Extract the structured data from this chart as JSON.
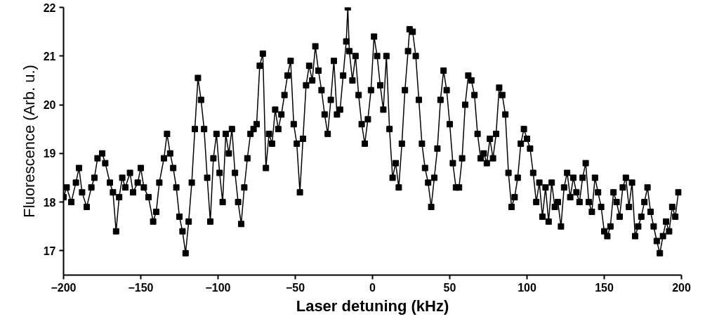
{
  "chart_data": {
    "type": "line",
    "xlabel": "Laser detuning (kHz)",
    "ylabel": "Fluorescence (Arb. u.)",
    "xlim": [
      -200,
      200
    ],
    "ylim": [
      16.5,
      22
    ],
    "xticks": [
      -200,
      -150,
      -100,
      -50,
      0,
      50,
      100,
      150,
      200
    ],
    "yticks": [
      17,
      18,
      19,
      20,
      21,
      22
    ],
    "grid": false,
    "marker": "square",
    "line_style": "solid",
    "x": [
      -200,
      -198,
      -195,
      -192,
      -190,
      -188,
      -185,
      -182,
      -180,
      -178,
      -175,
      -173,
      -170,
      -168,
      -166,
      -164,
      -162,
      -160,
      -157,
      -155,
      -152,
      -150,
      -148,
      -145,
      -142,
      -140,
      -138,
      -135,
      -133,
      -131,
      -129,
      -127,
      -125,
      -123,
      -121,
      -119,
      -117,
      -115,
      -113,
      -111,
      -109,
      -107,
      -105,
      -103,
      -101,
      -99,
      -97,
      -95,
      -93,
      -91,
      -89,
      -87,
      -85,
      -83,
      -81,
      -79,
      -77,
      -75,
      -73,
      -71,
      -69,
      -67,
      -65,
      -63,
      -61,
      -59,
      -57,
      -55,
      -53,
      -51,
      -49,
      -47,
      -45,
      -43,
      -41,
      -39,
      -37,
      -35,
      -33,
      -31,
      -29,
      -27,
      -25,
      -23,
      -21,
      -19,
      -17,
      -16,
      -15,
      -13,
      -11,
      -9,
      -7,
      -5,
      -3,
      -1,
      1,
      3,
      5,
      7,
      9,
      11,
      13,
      15,
      17,
      19,
      21,
      23,
      24,
      26,
      28,
      30,
      32,
      34,
      36,
      38,
      40,
      42,
      44,
      46,
      48,
      50,
      52,
      54,
      56,
      58,
      60,
      62,
      64,
      66,
      68,
      70,
      72,
      74,
      76,
      78,
      80,
      82,
      84,
      86,
      88,
      90,
      92,
      94,
      96,
      98,
      100,
      102,
      104,
      106,
      108,
      110,
      112,
      114,
      116,
      118,
      120,
      122,
      124,
      126,
      128,
      130,
      132,
      134,
      136,
      138,
      140,
      142,
      144,
      146,
      148,
      150,
      152,
      154,
      156,
      158,
      160,
      162,
      164,
      166,
      168,
      170,
      172,
      174,
      176,
      178,
      180,
      182,
      184,
      186,
      188,
      190,
      192,
      194,
      196,
      198
    ],
    "series": [
      {
        "color": "#000000",
        "values": [
          18.1,
          18.3,
          18.0,
          18.4,
          18.7,
          18.2,
          17.9,
          18.3,
          18.5,
          18.9,
          19.0,
          18.8,
          18.4,
          18.2,
          17.4,
          18.1,
          18.5,
          18.3,
          18.6,
          18.2,
          18.4,
          18.7,
          18.3,
          18.1,
          17.6,
          17.8,
          18.4,
          18.9,
          19.4,
          19.0,
          18.7,
          18.3,
          17.7,
          17.4,
          16.95,
          17.6,
          18.4,
          19.5,
          20.55,
          20.1,
          19.5,
          18.5,
          17.6,
          18.9,
          19.4,
          18.6,
          18.0,
          19.4,
          19.0,
          19.5,
          18.6,
          18.0,
          17.55,
          18.3,
          18.9,
          19.4,
          19.5,
          19.6,
          20.8,
          21.05,
          18.7,
          19.4,
          19.2,
          19.9,
          19.5,
          19.8,
          20.2,
          20.6,
          20.9,
          19.6,
          19.2,
          18.2,
          19.3,
          20.4,
          20.8,
          20.5,
          21.2,
          20.7,
          20.3,
          19.8,
          19.4,
          20.1,
          20.9,
          19.8,
          19.9,
          20.6,
          21.3,
          22.0,
          21.1,
          20.5,
          21.0,
          20.2,
          19.6,
          19.2,
          19.7,
          20.3,
          21.4,
          21.0,
          20.4,
          19.9,
          21.0,
          19.5,
          18.5,
          18.8,
          18.3,
          19.2,
          20.3,
          21.1,
          21.55,
          21.5,
          21.0,
          20.1,
          19.2,
          18.7,
          18.4,
          17.9,
          18.5,
          19.1,
          20.1,
          20.7,
          20.3,
          19.6,
          18.8,
          18.3,
          18.3,
          18.9,
          20.0,
          20.6,
          20.5,
          20.2,
          19.4,
          18.9,
          19.0,
          18.8,
          19.3,
          18.9,
          19.4,
          20.35,
          20.2,
          19.8,
          18.6,
          17.9,
          18.1,
          18.5,
          19.2,
          19.5,
          19.3,
          19.1,
          18.6,
          18.0,
          18.4,
          17.7,
          18.3,
          17.6,
          18.4,
          17.9,
          18.0,
          17.5,
          18.3,
          18.6,
          18.1,
          18.5,
          18.2,
          18.0,
          18.5,
          18.8,
          18.0,
          17.8,
          18.5,
          18.2,
          17.9,
          17.4,
          17.3,
          17.5,
          18.2,
          18.0,
          17.7,
          18.3,
          18.5,
          17.9,
          18.4,
          17.3,
          17.5,
          17.7,
          18.0,
          18.3,
          17.8,
          17.5,
          17.2,
          16.95,
          17.3,
          17.6,
          17.4,
          17.9,
          17.7,
          18.2
        ]
      }
    ]
  }
}
